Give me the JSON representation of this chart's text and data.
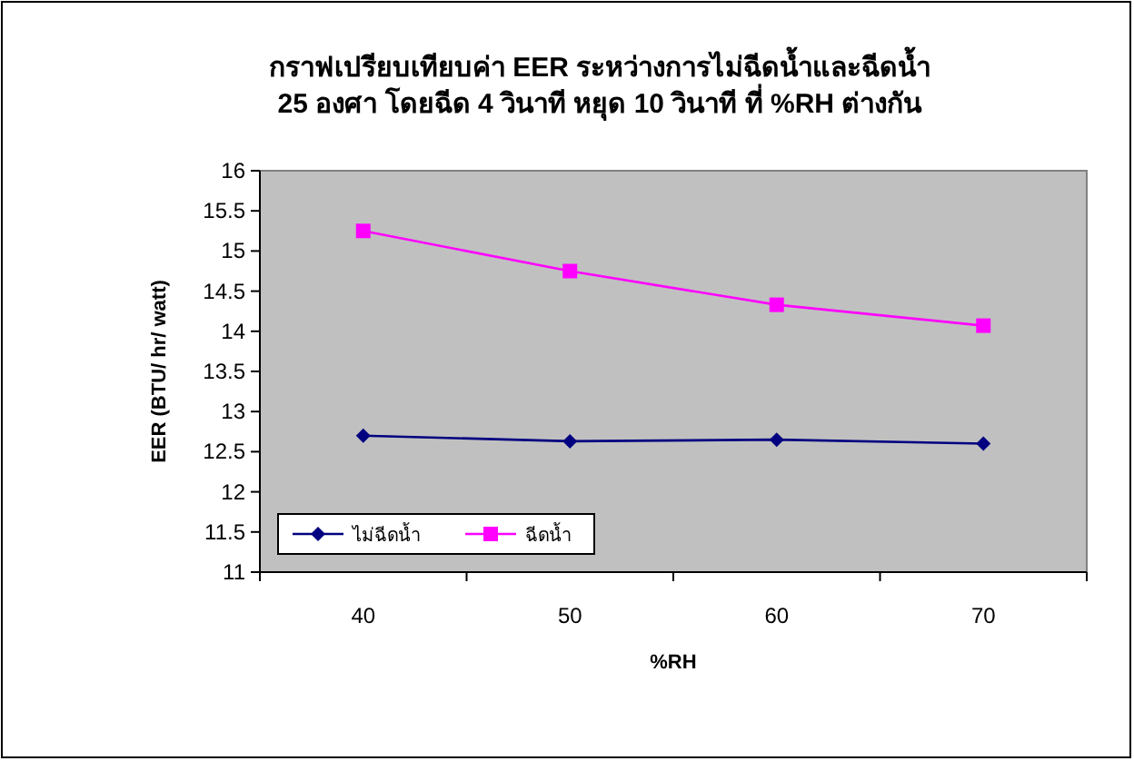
{
  "chart_data": {
    "type": "line",
    "title": "กราฟเปรียบเทียบค่า EER ระหว่างการไม่ฉีดน้ำและฉีดน้ำ\n25 องศา โดยฉีด 4 วินาที หยุด 10 วินาที ที่ %RH ต่างกัน",
    "xlabel": "%RH",
    "ylabel": "EER (BTU/ hr/ watt)",
    "categories": [
      "40",
      "50",
      "60",
      "70"
    ],
    "series": [
      {
        "name": "ไม่ฉีดน้ำ",
        "color": "#000080",
        "marker": "diamond",
        "values": [
          12.7,
          12.63,
          12.65,
          12.6
        ]
      },
      {
        "name": "ฉีดน้ำ",
        "color": "#ff00ff",
        "marker": "square",
        "values": [
          15.25,
          14.75,
          14.33,
          14.07
        ]
      }
    ],
    "ylim": [
      11,
      16
    ],
    "yticks": [
      11,
      11.5,
      12,
      12.5,
      13,
      13.5,
      14,
      14.5,
      15,
      15.5,
      16
    ],
    "grid": false,
    "legend": "bottom left",
    "line_style": "solid"
  }
}
